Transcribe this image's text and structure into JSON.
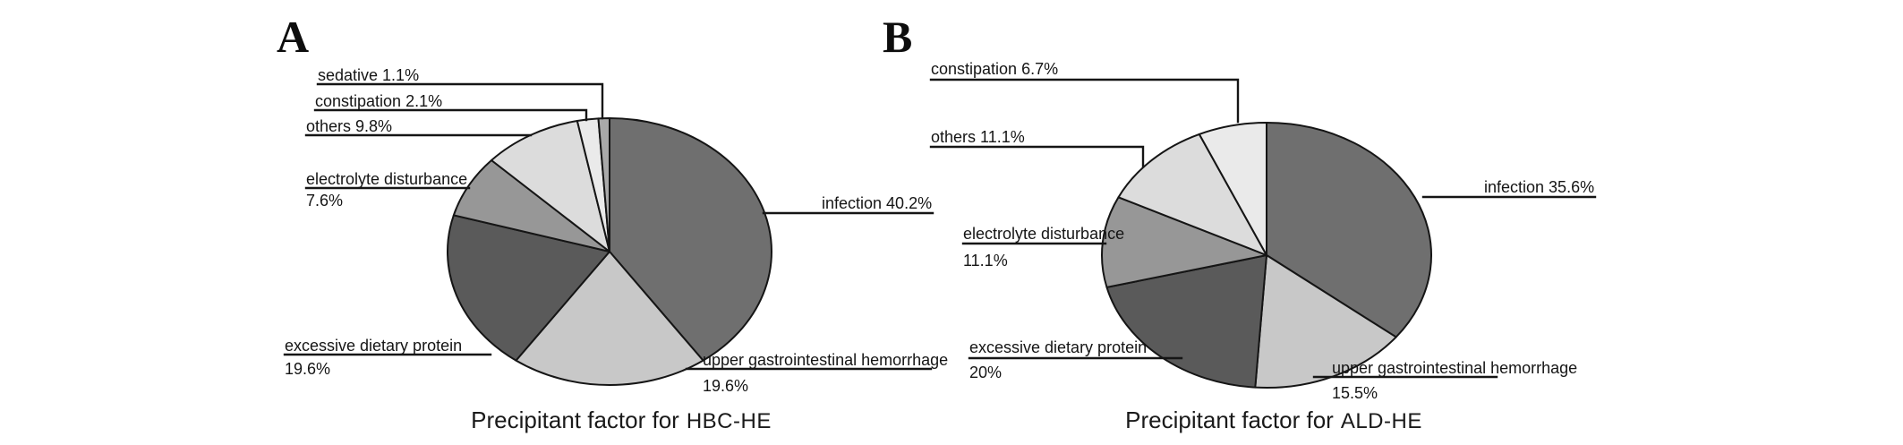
{
  "figure": {
    "background": "#ffffff",
    "ink_color": "#151515",
    "description": "Two grayscale pie charts of precipitant factors for hepatic encephalopathy"
  },
  "chart_data": [
    {
      "type": "pie",
      "marker": "A",
      "title": "Precipitant factor for HBC-HE",
      "title_prefix": "Precipitant factor for",
      "title_code": "HBC-HE",
      "legend_position": "none",
      "label_style": "callout-with-leader-lines",
      "categories": [
        "infection",
        "upper gastrointestinal hemorrhage",
        "excessive dietary protein",
        "electrolyte disturbance",
        "others",
        "constipation",
        "sedative"
      ],
      "values": [
        40.2,
        19.6,
        19.6,
        7.6,
        9.8,
        2.1,
        1.1
      ],
      "start_angle_deg": 0,
      "direction": "clockwise",
      "slices": [
        {
          "label": "infection",
          "pct_label": "40.2%",
          "value": 40.2,
          "color": "#6f6f6f"
        },
        {
          "label": "upper gastrointestinal hemorrhage",
          "pct_label": "19.6%",
          "value": 19.6,
          "color": "#c8c8c8"
        },
        {
          "label": "excessive dietary protein",
          "pct_label": "19.6%",
          "value": 19.6,
          "color": "#5a5a5a"
        },
        {
          "label": "electrolyte disturbance",
          "pct_label": "7.6%",
          "value": 7.6,
          "color": "#979797"
        },
        {
          "label": "others",
          "pct_label": "9.8%",
          "value": 9.8,
          "color": "#dcdcdc"
        },
        {
          "label": "constipation",
          "pct_label": "2.1%",
          "value": 2.1,
          "color": "#eaeaea"
        },
        {
          "label": "sedative",
          "pct_label": "1.1%",
          "value": 1.1,
          "color": "#a9a9a9"
        }
      ]
    },
    {
      "type": "pie",
      "marker": "B",
      "title": "Precipitant factor for ALD-HE",
      "title_prefix": "Precipitant factor for",
      "title_code": "ALD-HE",
      "legend_position": "none",
      "label_style": "callout-with-leader-lines",
      "categories": [
        "infection",
        "upper gastrointestinal hemorrhage",
        "excessive dietary protein",
        "electrolyte disturbance",
        "others",
        "constipation"
      ],
      "values": [
        35.6,
        15.5,
        20,
        11.1,
        11.1,
        6.7
      ],
      "start_angle_deg": 0,
      "direction": "clockwise",
      "slices": [
        {
          "label": "infection",
          "pct_label": "35.6%",
          "value": 35.6,
          "color": "#6f6f6f"
        },
        {
          "label": "upper gastrointestinal hemorrhage",
          "pct_label": "15.5%",
          "value": 15.5,
          "color": "#c8c8c8"
        },
        {
          "label": "excessive dietary protein",
          "pct_label": "20%",
          "value": 20,
          "color": "#5a5a5a"
        },
        {
          "label": "electrolyte disturbance",
          "pct_label": "11.1%",
          "value": 11.1,
          "color": "#979797"
        },
        {
          "label": "others",
          "pct_label": "11.1%",
          "value": 11.1,
          "color": "#dcdcdc"
        },
        {
          "label": "constipation",
          "pct_label": "6.7%",
          "value": 6.7,
          "color": "#eaeaea"
        }
      ]
    }
  ]
}
